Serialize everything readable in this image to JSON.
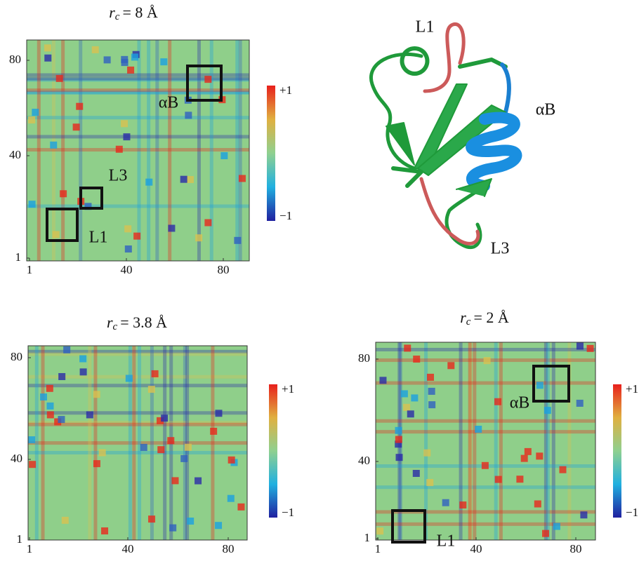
{
  "panels": [
    {
      "title": {
        "symbol": "r",
        "subscript": "c",
        "rest": "= 8 Å"
      },
      "yticks": [
        80,
        40,
        1
      ],
      "xticks": [
        1,
        40,
        80
      ],
      "colorbar": {
        "max": "+1",
        "min": "−1"
      },
      "boxes": [
        "αB",
        "L3",
        "L1"
      ]
    },
    {
      "title": {
        "symbol": "r",
        "subscript": "c",
        "rest": "= 3.8 Å"
      },
      "yticks": [
        80,
        40,
        1
      ],
      "xticks": [
        1,
        40,
        80
      ],
      "colorbar": {
        "max": "+1",
        "min": "−1"
      },
      "boxes": []
    },
    {
      "title": {
        "symbol": "r",
        "subscript": "c",
        "rest": "= 2 Å"
      },
      "yticks": [
        80,
        40,
        1
      ],
      "xticks": [
        1,
        40,
        80
      ],
      "colorbar": {
        "max": "+1",
        "min": "−1"
      },
      "boxes": [
        "αB",
        "L1"
      ]
    }
  ],
  "structure": {
    "labels": [
      "L1",
      "αB",
      "L3"
    ]
  }
}
